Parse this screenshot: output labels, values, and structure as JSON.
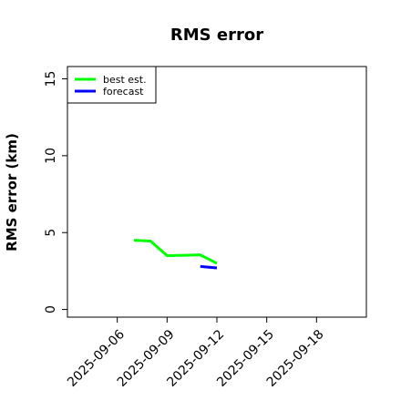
{
  "chart_data": {
    "type": "line",
    "title": "RMS error",
    "xlabel": "",
    "ylabel": "RMS error (km)",
    "xlim": [
      "2025-09-03",
      "2025-09-21"
    ],
    "ylim": [
      -0.5,
      15.8
    ],
    "x_ticks": [
      "2025-09-06",
      "2025-09-09",
      "2025-09-12",
      "2025-09-15",
      "2025-09-18"
    ],
    "y_ticks": [
      0,
      5,
      10,
      15
    ],
    "grid": false,
    "legend": "top-left",
    "series": [
      {
        "name": "best est.",
        "color": "#00ff00",
        "points": [
          {
            "x": "2025-09-07",
            "y": 4.5
          },
          {
            "x": "2025-09-08",
            "y": 4.45
          },
          {
            "x": "2025-09-09",
            "y": 3.5
          },
          {
            "x": "2025-09-10",
            "y": 3.52
          },
          {
            "x": "2025-09-11",
            "y": 3.55
          },
          {
            "x": "2025-09-12",
            "y": 3.0
          }
        ]
      },
      {
        "name": "forecast",
        "color": "#0000ff",
        "points": [
          {
            "x": "2025-09-11",
            "y": 2.8
          },
          {
            "x": "2025-09-12",
            "y": 2.7
          }
        ]
      }
    ]
  }
}
